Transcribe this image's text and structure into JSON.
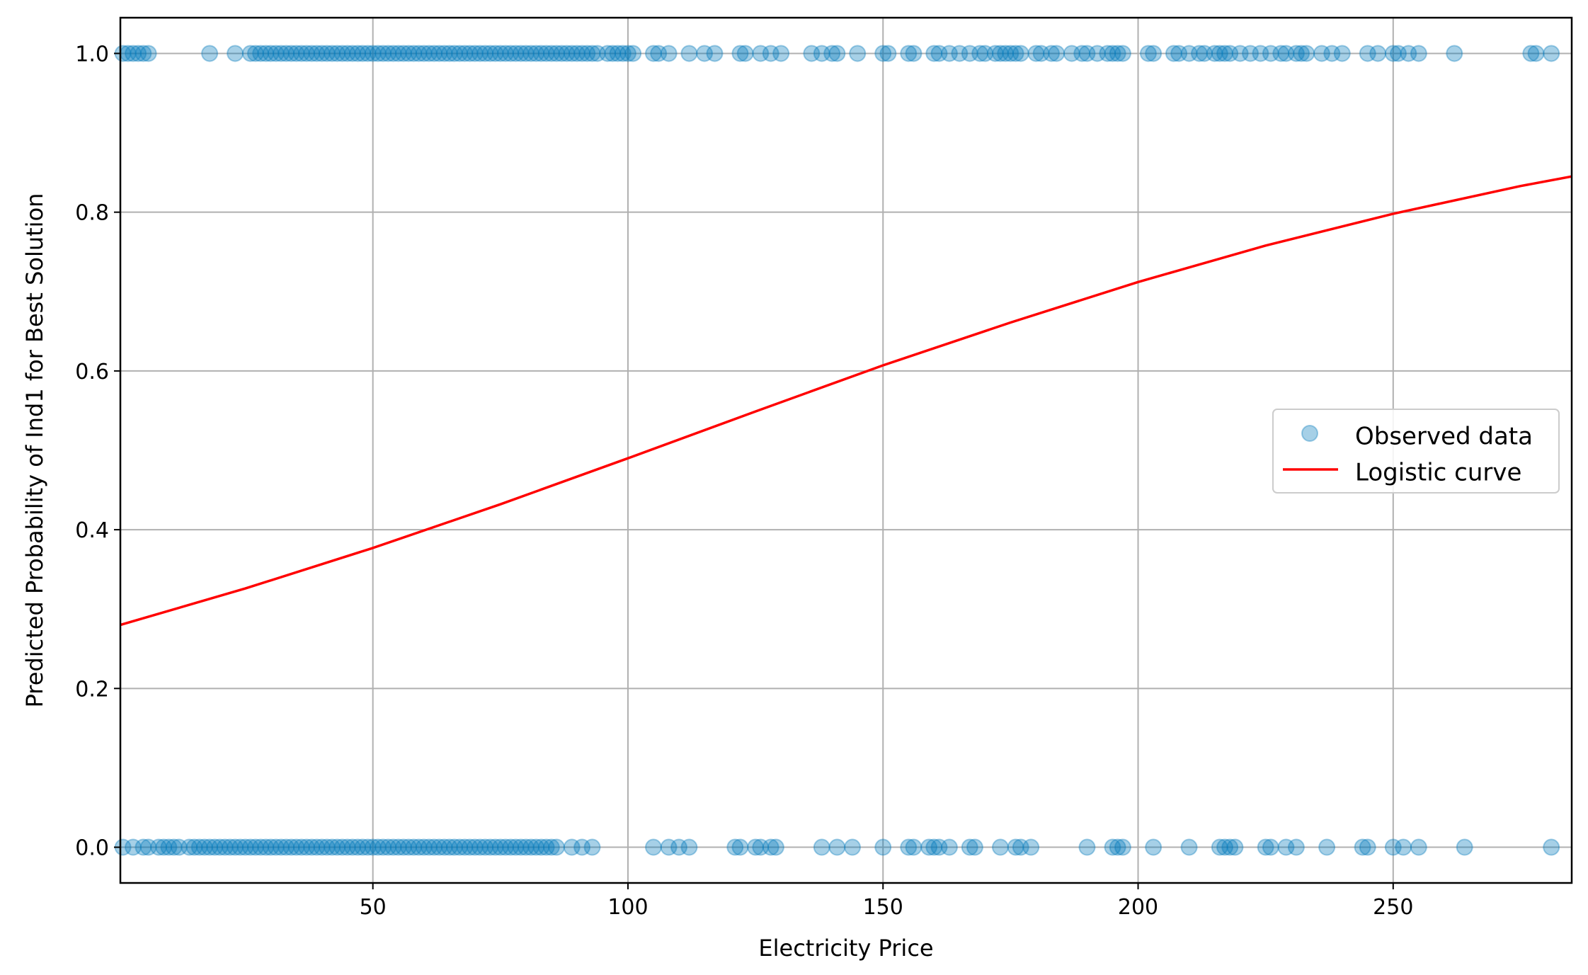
{
  "chart_data": {
    "type": "scatter",
    "xlabel": "Electricity Price",
    "ylabel": "Predicted Probability of Ind1 for Best Solution",
    "xlim": [
      0.5,
      285
    ],
    "ylim": [
      -0.045,
      1.045
    ],
    "x_ticks": [
      50,
      100,
      150,
      200,
      250
    ],
    "x_tick_labels": [
      "50",
      "100",
      "150",
      "200",
      "250"
    ],
    "y_ticks": [
      0.0,
      0.2,
      0.4,
      0.6,
      0.8,
      1.0
    ],
    "y_tick_labels": [
      "0.0",
      "0.2",
      "0.4",
      "0.6",
      "0.8",
      "1.0"
    ],
    "grid": true,
    "legend_position": "center-right",
    "legend": [
      {
        "label": "Observed data",
        "marker": "circle",
        "color": "#0077bb"
      },
      {
        "label": "Logistic curve",
        "marker": "line",
        "color": "#ff0000"
      }
    ],
    "series": [
      {
        "name": "Observed data",
        "kind": "scatter",
        "color": "#0077bb",
        "opacity": 0.35,
        "points": [
          {
            "y": 1,
            "x": [
              1,
              2,
              3,
              4,
              5,
              6,
              18,
              23,
              26,
              27,
              28,
              29,
              30,
              31,
              32,
              33,
              34,
              35,
              36,
              37,
              38,
              39,
              40,
              41,
              42,
              43,
              44,
              45,
              46,
              47,
              48,
              49,
              50,
              51,
              52,
              53,
              54,
              55,
              56,
              57,
              58,
              59,
              60,
              61,
              62,
              63,
              64,
              65,
              66,
              67,
              68,
              69,
              70,
              71,
              72,
              73,
              74,
              75,
              76,
              77,
              78,
              79,
              80,
              81,
              82,
              83,
              84,
              85,
              86,
              87,
              88,
              89,
              90,
              91,
              92,
              93,
              94,
              96,
              97,
              98,
              99,
              100,
              101,
              105,
              106,
              108,
              112,
              115,
              117,
              122,
              123,
              126,
              128,
              130,
              136,
              138,
              140,
              141,
              145,
              150,
              151,
              155,
              156,
              160,
              161,
              163,
              165,
              167,
              169,
              170,
              172,
              173,
              174,
              175,
              176,
              177,
              180,
              181,
              183,
              184,
              187,
              189,
              190,
              192,
              194,
              195,
              196,
              197,
              202,
              203,
              207,
              208,
              210,
              212,
              213,
              215,
              216,
              217,
              218,
              220,
              222,
              224,
              226,
              228,
              229,
              231,
              232,
              233,
              236,
              238,
              240,
              245,
              247,
              250,
              251,
              253,
              255,
              262,
              277,
              278,
              281
            ]
          },
          {
            "y": 0,
            "x": [
              1,
              3,
              5,
              6,
              8,
              9,
              10,
              11,
              12,
              14,
              15,
              16,
              17,
              18,
              19,
              20,
              21,
              22,
              23,
              24,
              25,
              26,
              27,
              28,
              29,
              30,
              31,
              32,
              33,
              34,
              35,
              36,
              37,
              38,
              39,
              40,
              41,
              42,
              43,
              44,
              45,
              46,
              47,
              48,
              49,
              50,
              51,
              52,
              53,
              54,
              55,
              56,
              57,
              58,
              59,
              60,
              61,
              62,
              63,
              64,
              65,
              66,
              67,
              68,
              69,
              70,
              71,
              72,
              73,
              74,
              75,
              76,
              77,
              78,
              79,
              80,
              81,
              82,
              83,
              84,
              85,
              86,
              89,
              91,
              93,
              105,
              108,
              110,
              112,
              121,
              122,
              125,
              126,
              128,
              129,
              138,
              141,
              144,
              150,
              155,
              156,
              159,
              160,
              161,
              163,
              167,
              168,
              173,
              176,
              177,
              179,
              190,
              195,
              196,
              197,
              203,
              210,
              216,
              217,
              218,
              219,
              225,
              226,
              229,
              231,
              237,
              244,
              245,
              250,
              252,
              255,
              264,
              281
            ]
          }
        ]
      },
      {
        "name": "Logistic curve",
        "kind": "line",
        "color": "#ff0000",
        "x": [
          0.5,
          25,
          50,
          75,
          100,
          125,
          150,
          175,
          200,
          225,
          250,
          275,
          285
        ],
        "y": [
          0.28,
          0.326,
          0.377,
          0.432,
          0.49,
          0.549,
          0.607,
          0.661,
          0.712,
          0.758,
          0.798,
          0.833,
          0.845
        ]
      }
    ]
  }
}
